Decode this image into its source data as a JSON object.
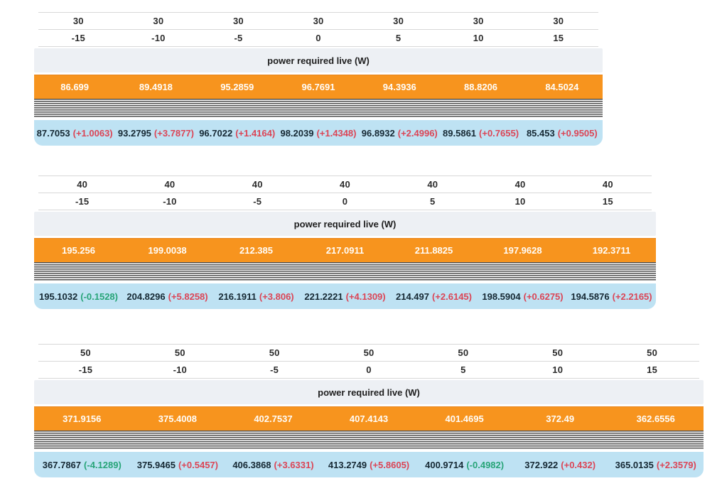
{
  "band_label": "power required live (W)",
  "colors": {
    "accent_orange": "#f7941e",
    "live_row_blue": "#bee2f3",
    "band_gray": "#edf0f4",
    "stripe_dark": "#4f4f4f",
    "header_text": "#2c2c2c",
    "value_dark": "#152833",
    "delta_positive": "#db4556",
    "delta_negative": "#27a478"
  },
  "tables": [
    {
      "condition": "30",
      "condition_row": [
        "30",
        "30",
        "30",
        "30",
        "30",
        "30",
        "30"
      ],
      "offset_row": [
        "-15",
        "-10",
        "-5",
        "0",
        "5",
        "10",
        "15"
      ],
      "band_label": "power required live (W)",
      "predicted_row": [
        "86.699",
        "89.4918",
        "95.2859",
        "96.7691",
        "94.3936",
        "88.8206",
        "84.5024"
      ],
      "live_row": [
        {
          "value": "87.7053",
          "delta": "(+1.0063)",
          "trend": "positive"
        },
        {
          "value": "93.2795",
          "delta": "(+3.7877)",
          "trend": "positive"
        },
        {
          "value": "96.7022",
          "delta": "(+1.4164)",
          "trend": "positive"
        },
        {
          "value": "98.2039",
          "delta": "(+1.4348)",
          "trend": "positive"
        },
        {
          "value": "96.8932",
          "delta": "(+2.4996)",
          "trend": "positive"
        },
        {
          "value": "89.5861",
          "delta": "(+0.7655)",
          "trend": "positive"
        },
        {
          "value": "85.453",
          "delta": "(+0.9505)",
          "trend": "positive"
        }
      ]
    },
    {
      "condition": "40",
      "condition_row": [
        "40",
        "40",
        "40",
        "40",
        "40",
        "40",
        "40"
      ],
      "offset_row": [
        "-15",
        "-10",
        "-5",
        "0",
        "5",
        "10",
        "15"
      ],
      "band_label": "power required live (W)",
      "predicted_row": [
        "195.256",
        "199.0038",
        "212.385",
        "217.0911",
        "211.8825",
        "197.9628",
        "192.3711"
      ],
      "live_row": [
        {
          "value": "195.1032",
          "delta": "(-0.1528)",
          "trend": "negative"
        },
        {
          "value": "204.8296",
          "delta": "(+5.8258)",
          "trend": "positive"
        },
        {
          "value": "216.1911",
          "delta": "(+3.806)",
          "trend": "positive"
        },
        {
          "value": "221.2221",
          "delta": "(+4.1309)",
          "trend": "positive"
        },
        {
          "value": "214.497",
          "delta": "(+2.6145)",
          "trend": "positive"
        },
        {
          "value": "198.5904",
          "delta": "(+0.6275)",
          "trend": "positive"
        },
        {
          "value": "194.5876",
          "delta": "(+2.2165)",
          "trend": "positive"
        }
      ]
    },
    {
      "condition": "50",
      "condition_row": [
        "50",
        "50",
        "50",
        "50",
        "50",
        "50",
        "50"
      ],
      "offset_row": [
        "-15",
        "-10",
        "-5",
        "0",
        "5",
        "10",
        "15"
      ],
      "band_label": "power required live (W)",
      "predicted_row": [
        "371.9156",
        "375.4008",
        "402.7537",
        "407.4143",
        "401.4695",
        "372.49",
        "362.6556"
      ],
      "live_row": [
        {
          "value": "367.7867",
          "delta": "(-4.1289)",
          "trend": "negative"
        },
        {
          "value": "375.9465",
          "delta": "(+0.5457)",
          "trend": "positive"
        },
        {
          "value": "406.3868",
          "delta": "(+3.6331)",
          "trend": "positive"
        },
        {
          "value": "413.2749",
          "delta": "(+5.8605)",
          "trend": "positive"
        },
        {
          "value": "400.9714",
          "delta": "(-0.4982)",
          "trend": "negative"
        },
        {
          "value": "372.922",
          "delta": "(+0.432)",
          "trend": "positive"
        },
        {
          "value": "365.0135",
          "delta": "(+2.3579)",
          "trend": "positive"
        }
      ]
    }
  ]
}
